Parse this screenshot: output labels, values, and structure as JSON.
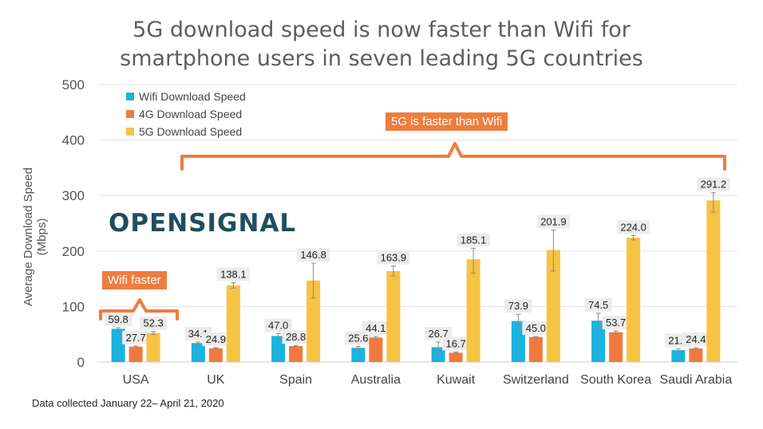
{
  "title_line1": "5G download speed is now faster than Wifi for",
  "title_line2": "smartphone users in seven leading 5G countries",
  "footnote": "Data collected January 22– April 21, 2020",
  "logo_text": "OPENSIGNAL",
  "callouts": {
    "five_g": "5G is faster than Wifi",
    "wifi": "Wifi faster"
  },
  "colors": {
    "wifi": "#1bb3df",
    "g4": "#ef7a3d",
    "g5": "#f6c344",
    "grid": "#e5e5e5",
    "callout": "#ee7d3f"
  },
  "chart_data": {
    "type": "bar",
    "title": "5G download speed is now faster than Wifi for smartphone users in seven leading 5G countries",
    "xlabel": "",
    "ylabel": "Average Download Speed (Mbps)",
    "ylim": [
      0,
      500
    ],
    "yticks": [
      0,
      100,
      200,
      300,
      400,
      500
    ],
    "grid": true,
    "legend_position": "top-left",
    "categories": [
      "USA",
      "UK",
      "Spain",
      "Australia",
      "Kuwait",
      "Switzerland",
      "South Korea",
      "Saudi Arabia"
    ],
    "series": [
      {
        "name": "Wifi Download Speed",
        "values": [
          59.8,
          34.1,
          47.0,
          25.6,
          26.7,
          73.9,
          74.5,
          21.4
        ],
        "labels": [
          "59.8",
          "34.1",
          "47.0",
          "25.6",
          "26.7",
          "73.9",
          "74.5",
          "21.4"
        ]
      },
      {
        "name": "4G Download Speed",
        "values": [
          27.7,
          24.9,
          28.8,
          44.1,
          16.7,
          45.0,
          53.7,
          24.4
        ],
        "labels": [
          "27.7",
          "24.9",
          "28.8",
          "44.1",
          "16.7",
          "45.0",
          "53.7",
          "24.4"
        ]
      },
      {
        "name": "5G Download Speed",
        "values": [
          52.3,
          138.1,
          146.8,
          163.9,
          185.1,
          201.9,
          224.0,
          291.2
        ],
        "labels": [
          "52.3",
          "138.1",
          "146.8",
          "163.9",
          "185.1",
          "201.9",
          "224.0",
          "291.2"
        ]
      }
    ],
    "error_bars": [
      [
        [
          58,
          62
        ],
        [
          32,
          36
        ],
        [
          43,
          51
        ],
        [
          24,
          28
        ],
        [
          18,
          36
        ],
        [
          62,
          86
        ],
        [
          62,
          88
        ],
        [
          19,
          24
        ]
      ],
      [
        [
          26,
          29
        ],
        [
          24,
          26
        ],
        [
          27,
          30
        ],
        [
          42,
          46
        ],
        [
          15,
          18
        ],
        [
          44,
          46
        ],
        [
          51,
          56
        ],
        [
          23,
          26
        ]
      ],
      [
        [
          50,
          55
        ],
        [
          133,
          143
        ],
        [
          115,
          178
        ],
        [
          155,
          173
        ],
        [
          160,
          205
        ],
        [
          164,
          238
        ],
        [
          220,
          228
        ],
        [
          270,
          305
        ]
      ]
    ]
  }
}
